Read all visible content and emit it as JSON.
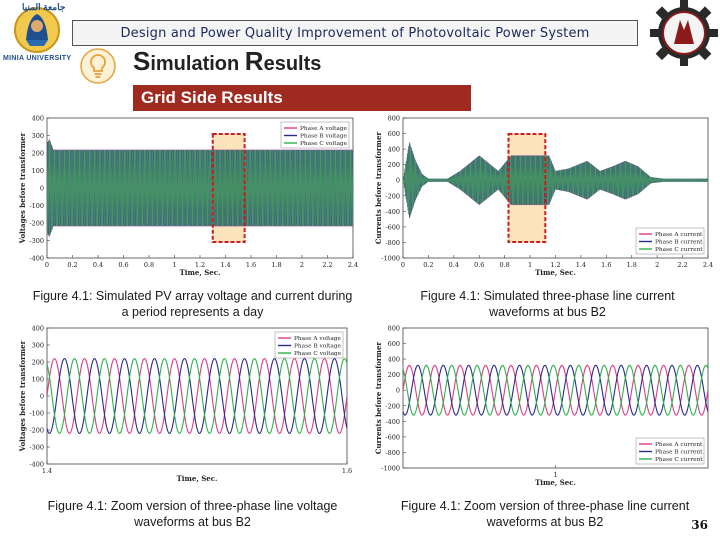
{
  "header": {
    "left_logo_text": "جامعة المنيا",
    "left_logo_caption": "MINIA UNIVERSITY",
    "title": "Design and Power Quality Improvement of Photovoltaic Power System"
  },
  "slide_title": {
    "initial1": "S",
    "rest1": "imulation ",
    "initial2": "R",
    "rest2": "esults"
  },
  "section_banner": "Grid Side Results",
  "colors": {
    "phaseA": "#e03a8a",
    "phaseB": "#2b2b8c",
    "phaseC": "#2bb34a",
    "banner": "#9e2a20",
    "highlight": "#c81e1e"
  },
  "icons": [
    "lightbulb-icon",
    "gear-emblem-icon",
    "university-logo-icon"
  ],
  "figures": [
    {
      "caption": "Figure 4.1: Simulated PV array voltage and current during a period represents a day",
      "chart_data": {
        "type": "line",
        "ylabel": "Voltages before transformer",
        "xlabel": "Time, Sec.",
        "yticks": [
          "400",
          "300",
          "200",
          "100",
          "0",
          "-100",
          "-200",
          "-300",
          "-400"
        ],
        "xticks": [
          "0",
          "0.2",
          "0.4",
          "0.6",
          "0.8",
          "1",
          "1.2",
          "1.4",
          "1.6",
          "1.8",
          "2",
          "2.2",
          "2.4"
        ],
        "xlim": [
          0,
          2.4
        ],
        "ylim": [
          -400,
          400
        ],
        "legend": [
          "Phase A voltage",
          "Phase B voltage",
          "Phase C voltage"
        ],
        "legend_position": "top-right",
        "envelope": {
          "x": [
            0,
            0.02,
            0.05,
            2.4
          ],
          "amplitude": [
            260,
            280,
            220,
            220
          ]
        },
        "highlight_x": [
          1.3,
          1.55
        ]
      }
    },
    {
      "caption": "Figure 4.1: Simulated three-phase line current waveforms at bus B2",
      "chart_data": {
        "type": "line",
        "ylabel": "Currents before transformer",
        "xlabel": "Time, Sec.",
        "yticks": [
          "800",
          "600",
          "400",
          "200",
          "0",
          "-200",
          "-400",
          "-600",
          "-800",
          "-1000"
        ],
        "xticks": [
          "0",
          "0.2",
          "0.4",
          "0.6",
          "0.8",
          "1",
          "1.2",
          "1.4",
          "1.6",
          "1.8",
          "2",
          "2.2",
          "2.4"
        ],
        "xlim": [
          0,
          2.4
        ],
        "ylim": [
          -1000,
          800
        ],
        "legend": [
          "Phase A current",
          "Phase B current",
          "Phase C current"
        ],
        "legend_position": "bottom-right",
        "envelope": {
          "x": [
            0,
            0.05,
            0.1,
            0.15,
            0.2,
            0.3,
            0.35,
            0.45,
            0.6,
            0.75,
            0.85,
            1.0,
            1.15,
            1.2,
            1.3,
            1.45,
            1.55,
            1.65,
            1.75,
            1.85,
            1.95,
            2.05,
            2.2,
            2.4
          ],
          "amplitude": [
            0,
            500,
            250,
            80,
            20,
            20,
            20,
            120,
            320,
            120,
            320,
            320,
            320,
            120,
            150,
            250,
            120,
            180,
            250,
            180,
            40,
            20,
            20,
            20
          ]
        },
        "highlight_x": [
          0.83,
          1.12
        ]
      }
    },
    {
      "caption": "Figure 4.1: Zoom version of three-phase line voltage waveforms at bus B2",
      "chart_data": {
        "type": "line",
        "ylabel": "Voltages before transformer",
        "xlabel": "Time, Sec.",
        "yticks": [
          "400",
          "300",
          "200",
          "100",
          "0",
          "-100",
          "-200",
          "-300",
          "-400"
        ],
        "xticks": [
          "1.4",
          "1.6"
        ],
        "xlim": [
          1.4,
          1.6
        ],
        "ylim": [
          -400,
          400
        ],
        "legend": [
          "Phase A voltage",
          "Phase B voltage",
          "Phase C voltage"
        ],
        "legend_position": "top-right",
        "amplitude": 220,
        "cycles": 10
      }
    },
    {
      "caption": "Figure 4.1: Zoom version of three-phase line current waveforms at bus B2",
      "chart_data": {
        "type": "line",
        "ylabel": "Currents before transformer",
        "xlabel": "Time, Sec.",
        "yticks": [
          "800",
          "600",
          "400",
          "200",
          "0",
          "-200",
          "-400",
          "-600",
          "-800",
          "-1000"
        ],
        "xticks": [
          "1"
        ],
        "xlim": [
          0.8,
          1.2
        ],
        "ylim": [
          -1000,
          800
        ],
        "legend": [
          "Phase A current",
          "Phase B current",
          "Phase C current"
        ],
        "legend_position": "bottom-right",
        "amplitude": 320,
        "cycles": 12
      }
    }
  ],
  "page_number": "36"
}
